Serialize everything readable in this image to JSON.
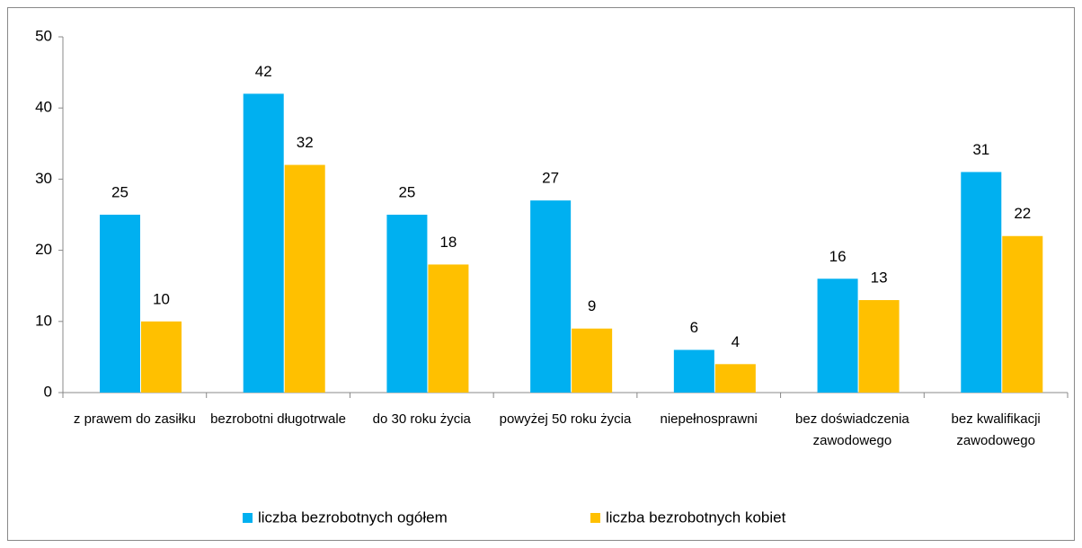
{
  "chart_data": {
    "type": "bar",
    "categories": [
      "z prawem do zasiłku",
      "bezrobotni długotrwale",
      "do 30 roku życia",
      "powyżej 50 roku życia",
      "niepełnosprawni",
      "bez doświadczenia zawodowego",
      "bez kwalifikacji zawodowego"
    ],
    "series": [
      {
        "name": "liczba bezrobotnych ogółem",
        "color": "#00b0f0",
        "values": [
          25,
          42,
          25,
          27,
          6,
          16,
          31
        ]
      },
      {
        "name": "liczba bezrobotnych kobiet",
        "color": "#ffc000",
        "values": [
          10,
          32,
          18,
          9,
          4,
          13,
          22
        ]
      }
    ],
    "ylim": [
      0,
      50
    ],
    "yticks": [
      0,
      10,
      20,
      30,
      40,
      50
    ],
    "grid": false,
    "legend": "bottom"
  }
}
